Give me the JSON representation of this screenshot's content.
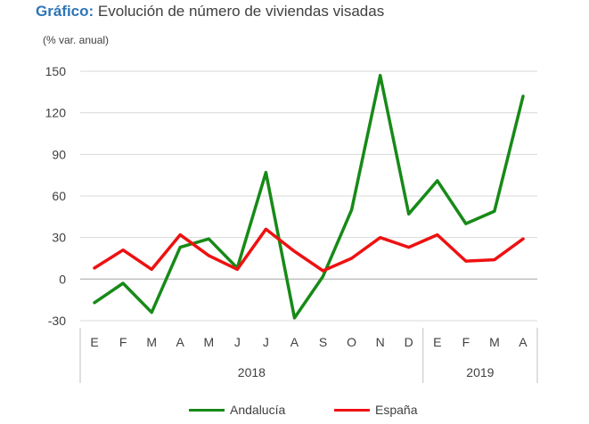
{
  "title": {
    "prefix": "Gráfico:",
    "text": " Evolución de número de viviendas visadas"
  },
  "unit_label": "(% var. anual)",
  "chart_data": {
    "type": "line",
    "categories": [
      "E",
      "F",
      "M",
      "A",
      "M",
      "J",
      "J",
      "A",
      "S",
      "O",
      "N",
      "D",
      "E",
      "F",
      "M",
      "A"
    ],
    "groups": [
      {
        "label": "2018",
        "span": 12
      },
      {
        "label": "2019",
        "span": 4
      }
    ],
    "ylim": [
      -30,
      150
    ],
    "yticks": [
      -30,
      0,
      30,
      60,
      90,
      120,
      150
    ],
    "grid": true,
    "legend_position": "bottom",
    "series": [
      {
        "name": "Andalucía",
        "color": "#178A17",
        "values": [
          -17,
          -3,
          -24,
          23,
          29,
          8,
          77,
          -28,
          2,
          50,
          147,
          47,
          71,
          40,
          49,
          132
        ]
      },
      {
        "name": "España",
        "color": "#EE1111",
        "values": [
          8,
          21,
          7,
          32,
          17,
          7,
          36,
          20,
          6,
          15,
          30,
          23,
          32,
          13,
          14,
          29
        ]
      }
    ]
  }
}
